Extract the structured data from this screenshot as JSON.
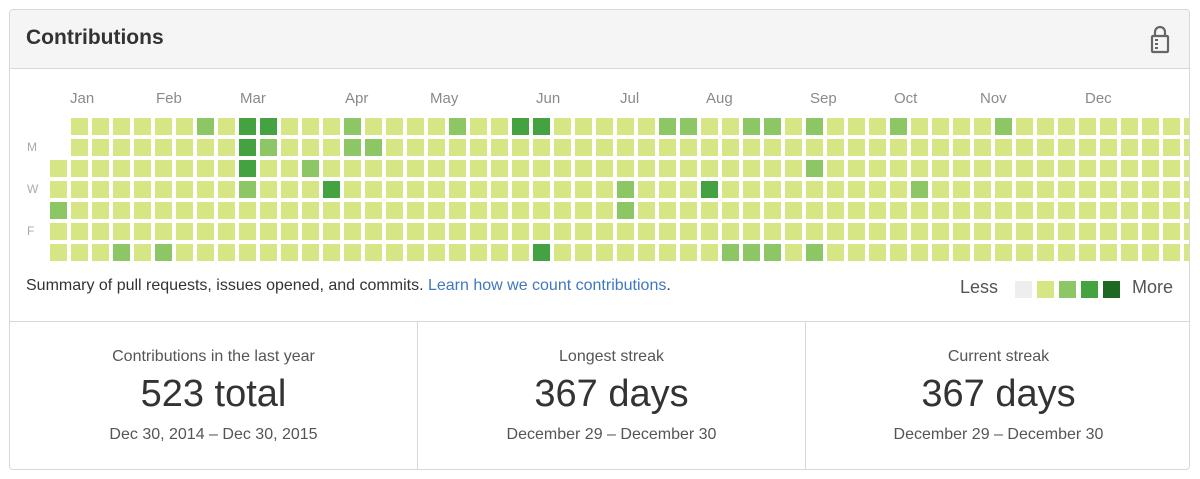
{
  "header": {
    "title": "Contributions",
    "lock_icon": "lock-icon"
  },
  "graph": {
    "months": [
      "Jan",
      "Feb",
      "Mar",
      "Apr",
      "May",
      "Jun",
      "Jul",
      "Aug",
      "Sep",
      "Oct",
      "Nov",
      "Dec"
    ],
    "day_labels": [
      "M",
      "W",
      "F"
    ],
    "colors": [
      "#eeeeee",
      "#d6e685",
      "#8cc665",
      "#44a340",
      "#1e6823"
    ],
    "start_offset": 2,
    "weeks": [
      "0111211",
      "1111111",
      "1111111",
      "1111112",
      "1111111",
      "1111112",
      "1111111",
      "2111111",
      "1111111",
      "3332111",
      "3211111",
      "1111111",
      "1121111",
      "1113111",
      "2211111",
      "1211111",
      "1111111",
      "1111111",
      "1111111",
      "2111111",
      "1111111",
      "1111111",
      "3111111",
      "3111113",
      "1111111",
      "1111111",
      "1111111",
      "1112211",
      "1111111",
      "2111111",
      "2111111",
      "1113111",
      "1111112",
      "2111112",
      "2111112",
      "1111111",
      "2121112",
      "1111111",
      "1111111",
      "1111111",
      "2111111",
      "1112111",
      "1111111",
      "1111111",
      "1111111",
      "2111111",
      "1111111",
      "1111111",
      "1111111",
      "1111111",
      "1111111",
      "1111111",
      "1111111",
      "1111111",
      "1111111",
      "1111111"
    ]
  },
  "summary": {
    "text": "Summary of pull requests, issues opened, and commits.",
    "link": "Learn how we count contributions",
    "link_tail": "."
  },
  "legend": {
    "less": "Less",
    "more": "More"
  },
  "stats": [
    {
      "label": "Contributions in the last year",
      "value": "523 total",
      "range": "Dec 30, 2014 – Dec 30, 2015"
    },
    {
      "label": "Longest streak",
      "value": "367 days",
      "range": "December 29 – December 30"
    },
    {
      "label": "Current streak",
      "value": "367 days",
      "range": "December 29 – December 30"
    }
  ]
}
